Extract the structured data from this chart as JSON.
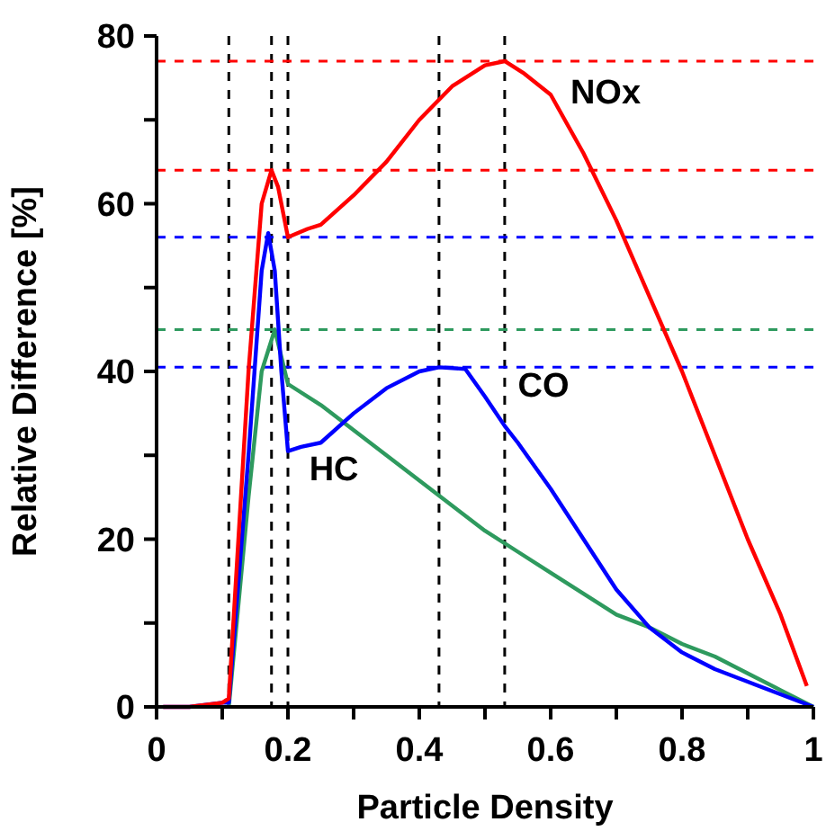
{
  "chart_data": {
    "type": "line",
    "xlabel": "Particle Density",
    "ylabel": "Relative Difference [%]",
    "xlim": [
      0,
      1
    ],
    "ylim": [
      0,
      80
    ],
    "xticks": [
      0,
      {
        "value": 0.1,
        "label": null
      },
      0.2,
      {
        "value": 0.3,
        "label": null
      },
      0.4,
      {
        "value": 0.5,
        "label": null
      },
      0.6,
      {
        "value": 0.7,
        "label": null
      },
      0.8,
      {
        "value": 0.9,
        "label": null
      },
      1
    ],
    "yticks": [
      0,
      {
        "value": 10,
        "label": null
      },
      20,
      {
        "value": 30,
        "label": null
      },
      40,
      {
        "value": 50,
        "label": null
      },
      60,
      {
        "value": 70,
        "label": null
      },
      80
    ],
    "grid": false,
    "marker": "none",
    "line_style": "solid",
    "series": [
      {
        "name": "HC",
        "color": "#2e9a5e",
        "x": [
          0.11,
          0.14,
          0.16,
          0.18,
          0.2,
          0.25,
          0.3,
          0.35,
          0.4,
          0.45,
          0.5,
          0.55,
          0.6,
          0.65,
          0.7,
          0.75,
          0.8,
          0.85,
          0.9,
          0.95,
          1.0
        ],
        "values": [
          0,
          25,
          40,
          45,
          38.5,
          36,
          33,
          30,
          27,
          24,
          21,
          18.5,
          16,
          13.5,
          11,
          9.5,
          7.5,
          6,
          4,
          2,
          0
        ]
      },
      {
        "name": "CO",
        "color": "#0000ff",
        "x": [
          0.01,
          0.05,
          0.1,
          0.11,
          0.14,
          0.16,
          0.17,
          0.18,
          0.19,
          0.2,
          0.22,
          0.25,
          0.3,
          0.35,
          0.4,
          0.43,
          0.47,
          0.5,
          0.53,
          0.55,
          0.6,
          0.65,
          0.7,
          0.75,
          0.8,
          0.85,
          0.9,
          0.95,
          1.0
        ],
        "values": [
          0,
          0,
          0.5,
          0.5,
          30,
          52,
          56.5,
          52,
          40,
          30.5,
          31,
          31.5,
          35,
          38,
          40,
          40.5,
          40.3,
          37,
          33.5,
          31.5,
          26,
          20,
          14,
          9.5,
          6.5,
          4.5,
          3,
          1.5,
          0
        ]
      },
      {
        "name": "NOx",
        "color": "#ff0000",
        "x": [
          0.01,
          0.05,
          0.1,
          0.11,
          0.14,
          0.16,
          0.175,
          0.185,
          0.2,
          0.23,
          0.25,
          0.3,
          0.35,
          0.4,
          0.45,
          0.5,
          0.53,
          0.56,
          0.6,
          0.65,
          0.7,
          0.75,
          0.8,
          0.85,
          0.9,
          0.95,
          0.99
        ],
        "values": [
          0,
          0,
          0.5,
          1,
          40,
          60,
          64,
          62,
          56,
          57,
          57.5,
          61,
          65,
          70,
          74,
          76.5,
          77,
          75.5,
          73,
          66,
          58,
          49,
          40,
          30,
          20,
          11,
          2.5
        ]
      }
    ],
    "ref_lines": [
      {
        "axis": "x",
        "value": 0.11,
        "color": "#000000",
        "line_style": "dashed"
      },
      {
        "axis": "x",
        "value": 0.175,
        "color": "#000000",
        "line_style": "dashed"
      },
      {
        "axis": "x",
        "value": 0.2,
        "color": "#000000",
        "line_style": "dashed"
      },
      {
        "axis": "x",
        "value": 0.43,
        "color": "#000000",
        "line_style": "dashed"
      },
      {
        "axis": "x",
        "value": 0.53,
        "color": "#000000",
        "line_style": "dashed"
      },
      {
        "axis": "y",
        "value": 77,
        "color": "#ff0000",
        "line_style": "dashed"
      },
      {
        "axis": "y",
        "value": 64,
        "color": "#ff0000",
        "line_style": "dashed"
      },
      {
        "axis": "y",
        "value": 56,
        "color": "#0000ff",
        "line_style": "dashed"
      },
      {
        "axis": "y",
        "value": 45,
        "color": "#2e9a5e",
        "line_style": "dashed"
      },
      {
        "axis": "y",
        "value": 40.5,
        "color": "#0000ff",
        "line_style": "dashed"
      }
    ]
  }
}
